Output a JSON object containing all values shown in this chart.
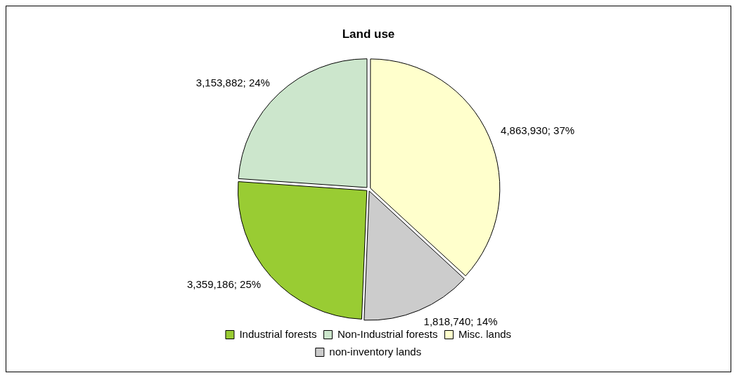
{
  "chart_data": {
    "type": "pie",
    "title": "Land use",
    "categories": [
      "Industrial forests",
      "Non-Industrial forests",
      "Misc. lands",
      "non-inventory lands"
    ],
    "values": [
      3359186,
      3153882,
      4863930,
      1818740
    ],
    "value_labels": [
      "3,359,186; 25%",
      "3,153,882; 24%",
      "4,863,930; 37%",
      "1,818,740; 14%"
    ],
    "colors": [
      "#99cc33",
      "#cce6cc",
      "#ffffcc",
      "#cccccc"
    ],
    "legend": "bottom"
  }
}
